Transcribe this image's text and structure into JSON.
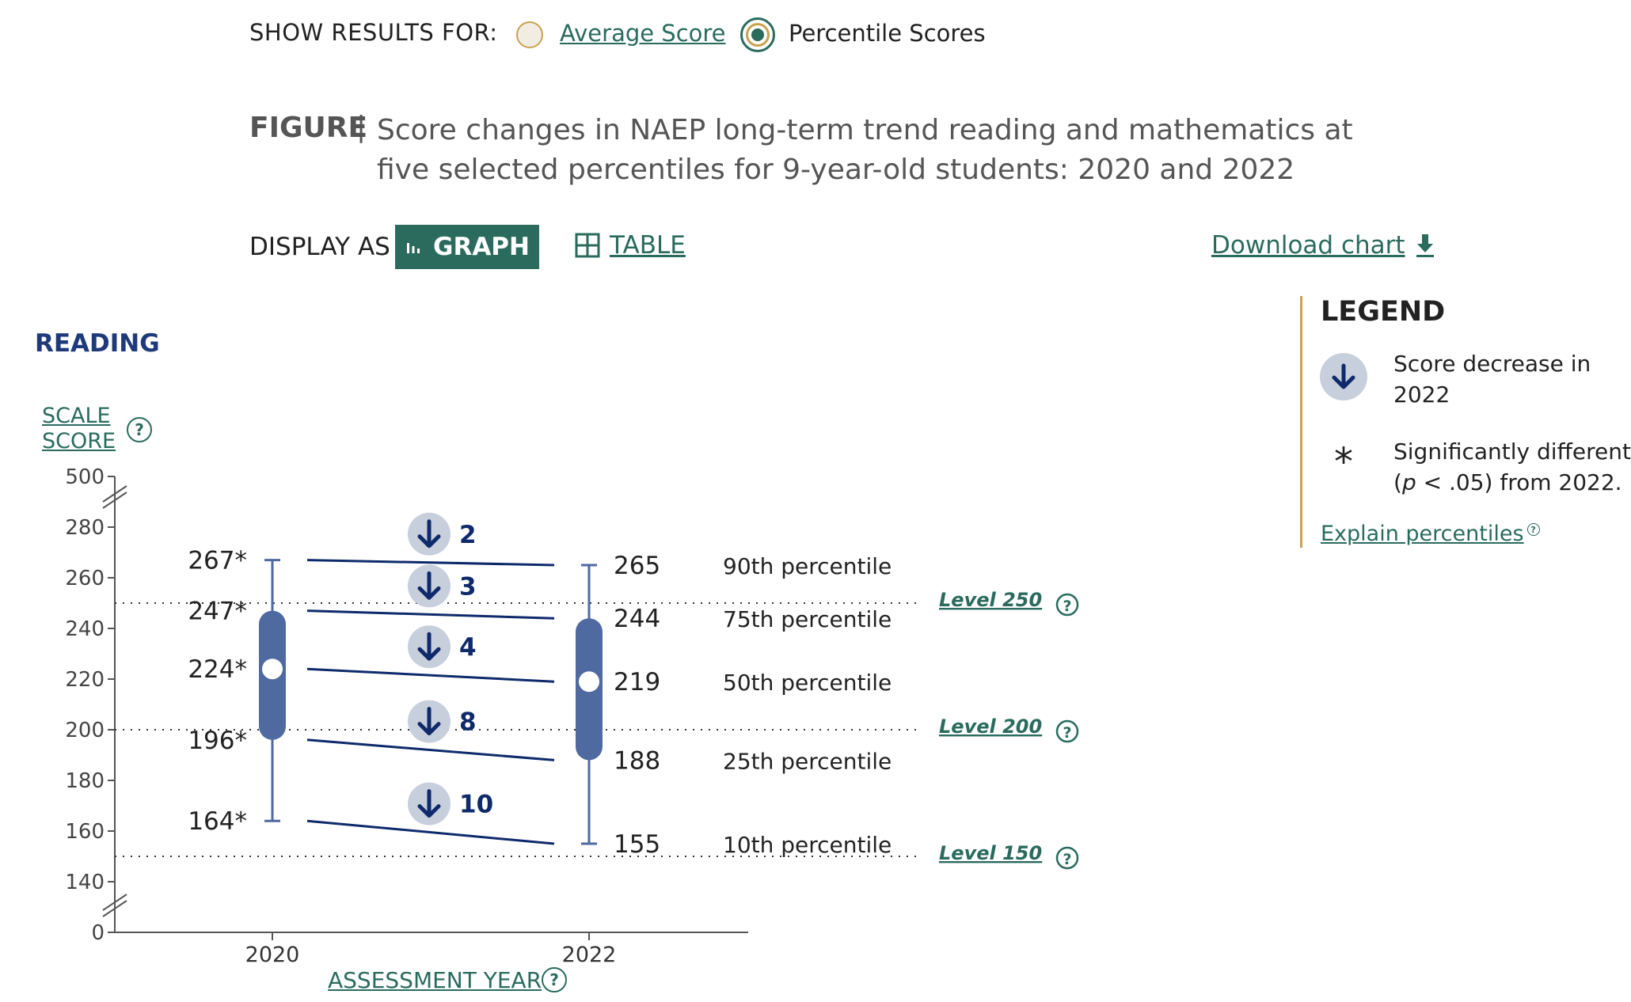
{
  "show_results": {
    "label": "SHOW RESULTS FOR:",
    "options": [
      {
        "label": "Average Score",
        "selected": false
      },
      {
        "label": "Percentile Scores",
        "selected": true
      }
    ]
  },
  "figure": {
    "label": "FIGURE",
    "separator": "|",
    "title": "Score changes in NAEP long-term trend reading and mathematics at five selected percentiles for 9-year-old students: 2020 and 2022"
  },
  "display": {
    "label": "DISPLAY AS",
    "graph_label": "GRAPH",
    "table_label": "TABLE",
    "download_label": "Download chart"
  },
  "legend": {
    "title": "LEGEND",
    "decrease_text": "Score decrease in 2022",
    "star_symbol": "*",
    "sig_text_pre": "Significantly different (",
    "sig_text_p": "p",
    "sig_text_post": " < .05) from 2022.",
    "explain_label": "Explain percentiles"
  },
  "colors": {
    "accent": "#2a6b5e",
    "gold": "#c9a24f",
    "navy": "#1f3a7a",
    "box": "#4f6aa0",
    "arrow_circle": "#c7cfdc",
    "arrow": "#0e2a6b"
  },
  "chart_data": {
    "type": "percentile-change",
    "subject": "READING",
    "ylabel": "SCALE SCORE",
    "xlabel": "ASSESSMENT YEAR",
    "y_ticks": [
      500,
      280,
      260,
      240,
      220,
      200,
      180,
      160,
      140,
      0
    ],
    "ylim": [
      140,
      280
    ],
    "axis_break": true,
    "years": [
      "2020",
      "2022"
    ],
    "percentiles": [
      {
        "name": "90th percentile",
        "y2020": 267,
        "y2020_label": "267*",
        "y2022": 265,
        "y2022_label": "265",
        "change": "2"
      },
      {
        "name": "75th percentile",
        "y2020": 247,
        "y2020_label": "247*",
        "y2022": 244,
        "y2022_label": "244",
        "change": "3"
      },
      {
        "name": "50th percentile",
        "y2020": 224,
        "y2020_label": "224*",
        "y2022": 219,
        "y2022_label": "219",
        "change": "4"
      },
      {
        "name": "25th percentile",
        "y2020": 196,
        "y2020_label": "196*",
        "y2022": 188,
        "y2022_label": "188",
        "change": "8"
      },
      {
        "name": "10th percentile",
        "y2020": 164,
        "y2020_label": "164*",
        "y2022": 155,
        "y2022_label": "155",
        "change": "10"
      }
    ],
    "levels": [
      {
        "label": "Level 250",
        "value": 250
      },
      {
        "label": "Level 200",
        "value": 200
      },
      {
        "label": "Level 150",
        "value": 150
      }
    ]
  }
}
